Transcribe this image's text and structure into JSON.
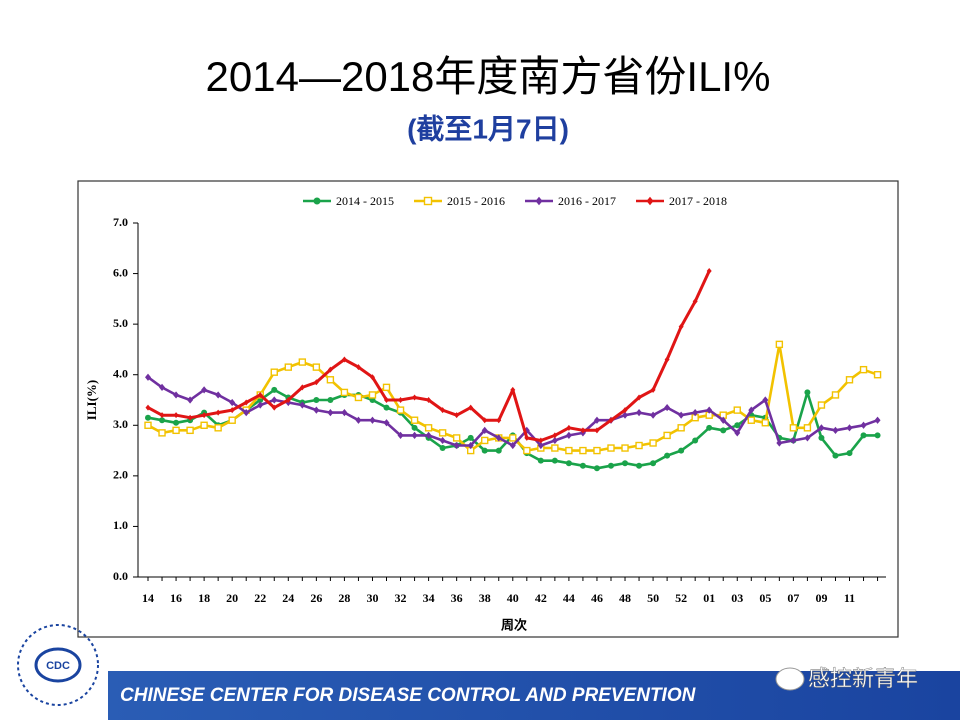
{
  "chart_data": {
    "type": "line",
    "title": "2014—2018年度南方省份ILI%",
    "subtitle": "(截至1月7日)",
    "x_label": "周次",
    "y_label": "ILI(%)",
    "categories": [
      "14",
      null,
      "16",
      null,
      "18",
      null,
      "20",
      null,
      "22",
      null,
      "24",
      null,
      "26",
      null,
      "28",
      null,
      "30",
      null,
      "32",
      null,
      "34",
      null,
      "36",
      null,
      "38",
      null,
      "40",
      null,
      "42",
      null,
      "44",
      null,
      "46",
      null,
      "48",
      null,
      "50",
      null,
      "52",
      null,
      "01",
      null,
      "03",
      null,
      "05",
      null,
      "07",
      null,
      "09",
      null,
      "11",
      null,
      null
    ],
    "ylim": [
      0,
      7
    ],
    "yticks": [
      {
        "value": 0,
        "label": "0.0"
      },
      {
        "value": 1,
        "label": "1.0"
      },
      {
        "value": 2,
        "label": "2.0"
      },
      {
        "value": 3,
        "label": "3.0"
      },
      {
        "value": 4,
        "label": "4.0"
      },
      {
        "value": 5,
        "label": "5.0"
      },
      {
        "value": 6,
        "label": "6.0"
      },
      {
        "value": 7,
        "label": "7.0"
      }
    ],
    "grid": false,
    "legend": "top",
    "series": [
      {
        "name": "2014 - 2015",
        "color": "#1aa34a",
        "marker": "circle",
        "values": [
          3.15,
          3.1,
          3.05,
          3.1,
          3.25,
          3.0,
          3.1,
          3.3,
          3.5,
          3.7,
          3.55,
          3.45,
          3.5,
          3.5,
          3.6,
          3.6,
          3.5,
          3.35,
          3.25,
          2.95,
          2.75,
          2.55,
          2.6,
          2.75,
          2.5,
          2.5,
          2.8,
          2.45,
          2.3,
          2.3,
          2.25,
          2.2,
          2.15,
          2.2,
          2.25,
          2.2,
          2.25,
          2.4,
          2.5,
          2.7,
          2.95,
          2.9,
          3.0,
          3.2,
          3.15,
          2.75,
          2.7,
          3.65,
          2.75,
          2.4,
          2.45,
          2.8,
          2.8
        ]
      },
      {
        "name": "2015 - 2016",
        "color": "#f2c200",
        "marker": "square",
        "values": [
          3.0,
          2.85,
          2.9,
          2.9,
          3.0,
          2.95,
          3.1,
          3.3,
          3.6,
          4.05,
          4.15,
          4.25,
          4.15,
          3.9,
          3.65,
          3.55,
          3.6,
          3.75,
          3.3,
          3.1,
          2.95,
          2.85,
          2.75,
          2.5,
          2.7,
          2.75,
          2.75,
          2.5,
          2.55,
          2.55,
          2.5,
          2.5,
          2.5,
          2.55,
          2.55,
          2.6,
          2.65,
          2.8,
          2.95,
          3.15,
          3.2,
          3.2,
          3.3,
          3.1,
          3.05,
          4.6,
          2.95,
          2.95,
          3.4,
          3.6,
          3.9,
          4.1,
          4.0
        ]
      },
      {
        "name": "2016 - 2017",
        "color": "#7030a0",
        "marker": "diamond",
        "values": [
          3.95,
          3.75,
          3.6,
          3.5,
          3.7,
          3.6,
          3.45,
          3.25,
          3.4,
          3.5,
          3.45,
          3.4,
          3.3,
          3.25,
          3.25,
          3.1,
          3.1,
          3.05,
          2.8,
          2.8,
          2.8,
          2.7,
          2.6,
          2.6,
          2.9,
          2.75,
          2.6,
          2.9,
          2.6,
          2.7,
          2.8,
          2.85,
          3.1,
          3.1,
          3.2,
          3.25,
          3.2,
          3.35,
          3.2,
          3.25,
          3.3,
          3.1,
          2.85,
          3.3,
          3.5,
          2.65,
          2.7,
          2.75,
          2.95,
          2.9,
          2.95,
          3.0,
          3.1
        ]
      },
      {
        "name": "2017 - 2018",
        "color": "#e01515",
        "marker": "diamond",
        "values": [
          3.35,
          3.2,
          3.2,
          3.15,
          3.2,
          3.25,
          3.3,
          3.45,
          3.6,
          3.35,
          3.5,
          3.75,
          3.85,
          4.1,
          4.3,
          4.15,
          3.95,
          3.5,
          3.5,
          3.55,
          3.5,
          3.3,
          3.2,
          3.35,
          3.1,
          3.1,
          3.7,
          2.75,
          2.7,
          2.8,
          2.95,
          2.9,
          2.9,
          3.1,
          3.3,
          3.55,
          3.7,
          4.3,
          4.95,
          5.45,
          6.05,
          null,
          null,
          null,
          null,
          null,
          null,
          null,
          null,
          null,
          null,
          null,
          null
        ]
      }
    ]
  },
  "slide": {
    "footer": "CHINESE CENTER FOR DISEASE CONTROL AND PREVENTION",
    "logo_text": "CDC",
    "watermark": "感控新青年"
  }
}
